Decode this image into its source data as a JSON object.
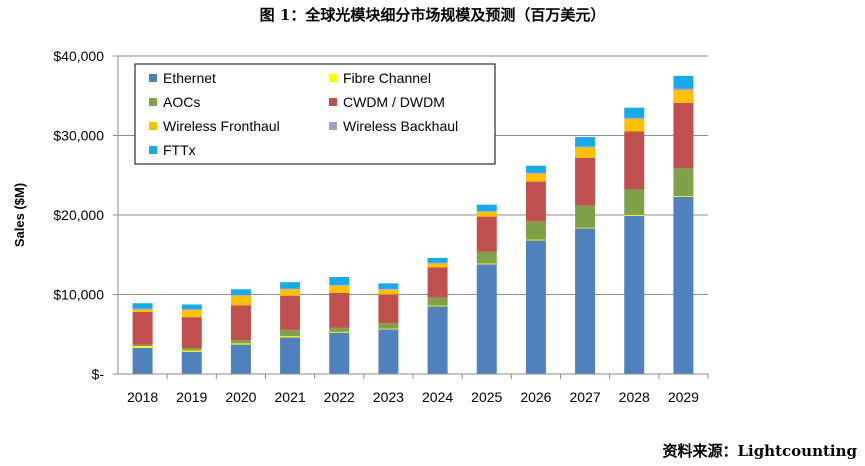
{
  "page": {
    "title": "图 1：全球光模块细分市场规模及预测（百万美元）",
    "source": "资料来源：Lightcounting"
  },
  "colors": {
    "Ethernet": "#4f81bd",
    "Fibre Channel": "#ffff00",
    "AOCs": "#7fa14a",
    "CWDM / DWDM": "#c0504d",
    "Wireless Fronthaul": "#ffc000",
    "Wireless Backhaul": "#a99bd0",
    "FTTx": "#17a9e8"
  },
  "chart_data": {
    "type": "bar",
    "stacked": true,
    "title": "",
    "xlabel": "",
    "ylabel": "Sales ($M)",
    "ylim": [
      0,
      40000
    ],
    "yticks": [
      0,
      10000,
      20000,
      30000,
      40000
    ],
    "ytick_labels": [
      "$-",
      "$10,000",
      "$20,000",
      "$30,000",
      "$40,000"
    ],
    "grid": true,
    "legend_position": "top-left",
    "categories": [
      "2018",
      "2019",
      "2020",
      "2021",
      "2022",
      "2023",
      "2024",
      "2025",
      "2026",
      "2027",
      "2028",
      "2029"
    ],
    "series": [
      {
        "name": "Ethernet",
        "values": [
          3300,
          2800,
          3700,
          4600,
          5200,
          5600,
          8500,
          13800,
          16800,
          18300,
          19900,
          22300
        ]
      },
      {
        "name": "Fibre Channel",
        "values": [
          200,
          150,
          150,
          150,
          100,
          100,
          100,
          100,
          100,
          100,
          100,
          100
        ]
      },
      {
        "name": "AOCs",
        "values": [
          200,
          300,
          400,
          800,
          500,
          700,
          1000,
          1500,
          2300,
          2800,
          3200,
          3500
        ]
      },
      {
        "name": "CWDM / DWDM",
        "values": [
          4100,
          3900,
          4400,
          4300,
          4400,
          3600,
          3800,
          4400,
          5000,
          6000,
          7300,
          8200
        ]
      },
      {
        "name": "Wireless Fronthaul",
        "values": [
          300,
          900,
          1200,
          800,
          900,
          600,
          500,
          600,
          1000,
          1300,
          1600,
          1600
        ]
      },
      {
        "name": "Wireless Backhaul",
        "values": [
          100,
          100,
          100,
          100,
          100,
          100,
          100,
          100,
          100,
          100,
          100,
          200
        ]
      },
      {
        "name": "FTTx",
        "values": [
          700,
          600,
          700,
          800,
          1000,
          700,
          600,
          800,
          900,
          1200,
          1300,
          1600
        ]
      }
    ]
  }
}
